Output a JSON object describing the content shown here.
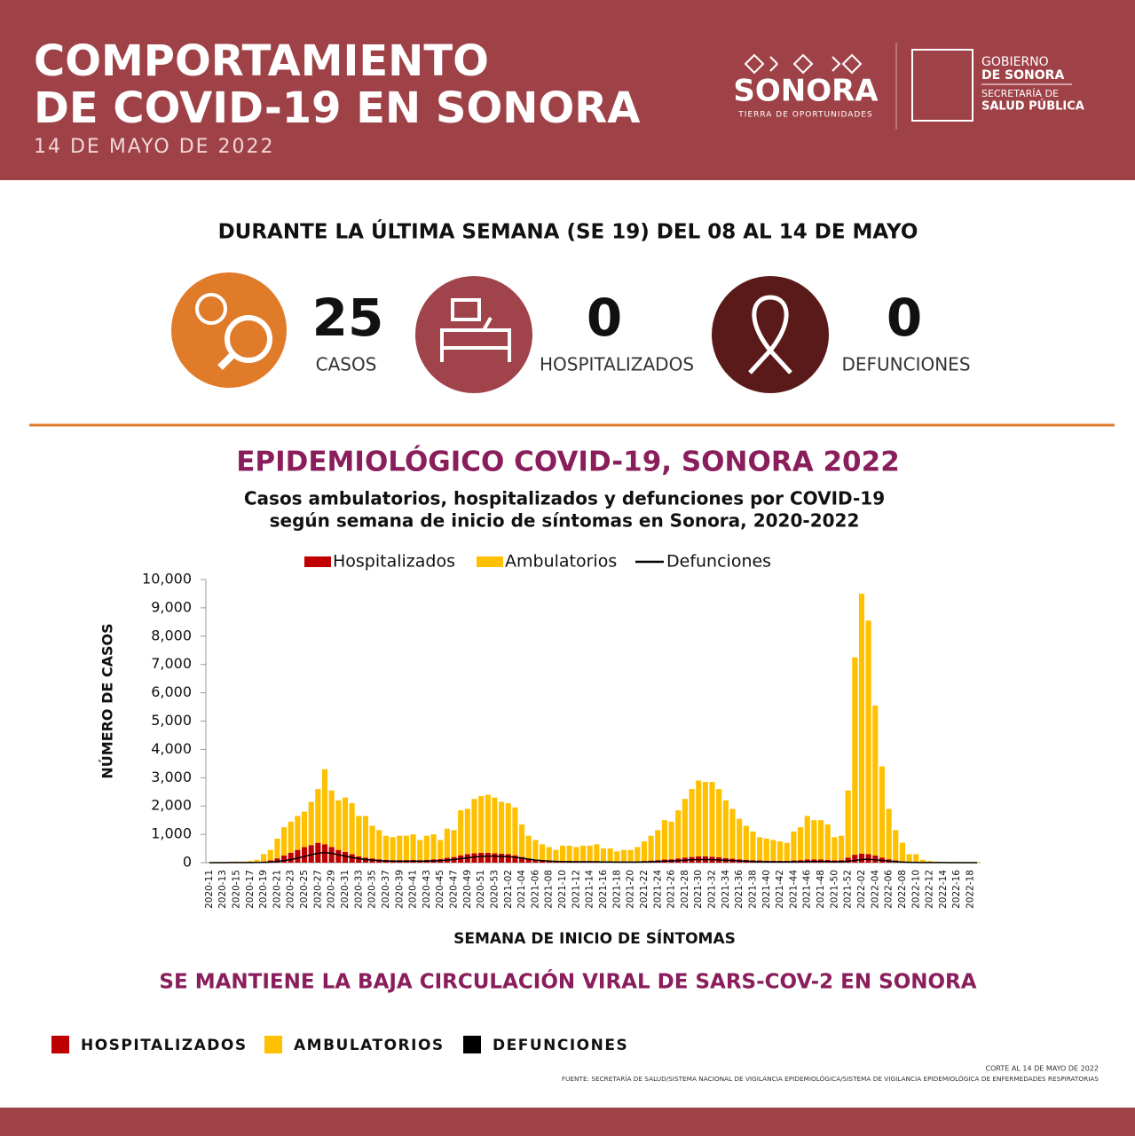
{
  "header": {
    "title_line1": "COMPORTAMIENTO",
    "title_line2": "DE COVID-19 EN SONORA",
    "date": "14 DE MAYO DE 2022",
    "logo_main": "SONORA",
    "logo_tagline": "TIERRA DE OPORTUNIDADES",
    "gov_line1": "GOBIERNO",
    "gov_line2": "DE SONORA",
    "sec_line1": "SECRETARÍA DE",
    "sec_line2": "SALUD PÚBLICA"
  },
  "summary": {
    "heading": "DURANTE LA ÚLTIMA SEMANA (SE 19) DEL 08 AL 14 DE MAYO",
    "stats": [
      {
        "value": 25,
        "label": "CASOS"
      },
      {
        "value": 0,
        "label": "HOSPITALIZADOS"
      },
      {
        "value": 0,
        "label": "DEFUNCIONES"
      }
    ]
  },
  "chart_data": {
    "type": "bar",
    "stacked": true,
    "title": "EPIDEMIOLÓGICO COVID-19, SONORA 2022",
    "subtitle": [
      "Casos ambulatorios, hospitalizados y defunciones por COVID-19",
      "según semana de inicio de síntomas en Sonora, 2020-2022"
    ],
    "y_label": "NÚMERO DE CASOS",
    "x_label": "SEMANA DE INICIO DE SÍNTOMAS",
    "ylim": [
      0,
      10000
    ],
    "yticks": [
      0,
      {
        "value": 1000,
        "label": "1,000"
      },
      {
        "value": 2000,
        "label": "2,000"
      },
      {
        "value": 3000,
        "label": "3,000"
      },
      {
        "value": 4000,
        "label": "4,000"
      },
      {
        "value": 5000,
        "label": "5,000"
      },
      {
        "value": 6000,
        "label": "6,000"
      },
      {
        "value": 7000,
        "label": "7,000"
      },
      {
        "value": 8000,
        "label": "8,000"
      },
      {
        "value": 9000,
        "label": "9,000"
      },
      {
        "value": 10000,
        "label": "10,000"
      }
    ],
    "categories": [
      "2020-11",
      null,
      "2020-13",
      null,
      "2020-15",
      null,
      "2020-17",
      null,
      "2020-19",
      null,
      "2020-21",
      null,
      "2020-23",
      null,
      "2020-25",
      null,
      "2020-27",
      null,
      "2020-29",
      null,
      "2020-31",
      null,
      "2020-33",
      null,
      "2020-35",
      null,
      "2020-37",
      null,
      "2020-39",
      null,
      "2020-41",
      null,
      "2020-43",
      null,
      "2020-45",
      null,
      "2020-47",
      null,
      "2020-49",
      null,
      "2020-51",
      null,
      "2020-53",
      null,
      "2021-02",
      null,
      "2021-04",
      null,
      "2021-06",
      null,
      "2021-08",
      null,
      "2021-10",
      null,
      "2021-12",
      null,
      "2021-14",
      null,
      "2021-16",
      null,
      "2021-18",
      null,
      "2021-20",
      null,
      "2021-22",
      null,
      "2021-24",
      null,
      "2021-26",
      null,
      "2021-28",
      null,
      "2021-30",
      null,
      "2021-32",
      null,
      "2021-34",
      null,
      "2021-36",
      null,
      "2021-38",
      null,
      "2021-40",
      null,
      "2021-42",
      null,
      "2021-44",
      null,
      "2021-46",
      null,
      "2021-48",
      null,
      "2021-50",
      null,
      "2021-52",
      null,
      "2022-02",
      null,
      "2022-04",
      null,
      "2022-06",
      null,
      "2022-08",
      null,
      "2022-10",
      null,
      "2022-12",
      null,
      "2022-14",
      null,
      "2022-16",
      null,
      "2022-18",
      null
    ],
    "series": [
      {
        "name": "Hospitalizados",
        "color": "#c00000",
        "values": [
          5,
          5,
          5,
          5,
          10,
          10,
          10,
          20,
          40,
          80,
          150,
          250,
          350,
          450,
          550,
          620,
          700,
          650,
          550,
          450,
          380,
          300,
          220,
          180,
          150,
          120,
          100,
          90,
          90,
          90,
          100,
          90,
          100,
          120,
          130,
          170,
          200,
          260,
          300,
          330,
          350,
          350,
          330,
          320,
          300,
          260,
          200,
          150,
          110,
          90,
          70,
          60,
          60,
          60,
          55,
          55,
          55,
          55,
          50,
          45,
          40,
          40,
          40,
          45,
          60,
          75,
          90,
          110,
          120,
          150,
          180,
          200,
          220,
          220,
          210,
          190,
          160,
          140,
          120,
          100,
          90,
          80,
          70,
          70,
          65,
          65,
          80,
          90,
          110,
          110,
          110,
          100,
          80,
          90,
          180,
          280,
          320,
          300,
          250,
          180,
          120,
          80,
          50,
          30,
          20,
          10,
          5,
          5,
          5,
          3,
          3,
          2,
          2,
          2
        ]
      },
      {
        "name": "Ambulatorios",
        "color": "#ffc000",
        "values": [
          15,
          15,
          25,
          25,
          30,
          30,
          50,
          80,
          260,
          370,
          700,
          1000,
          1100,
          1200,
          1250,
          1530,
          1900,
          2650,
          2000,
          1750,
          1920,
          1800,
          1430,
          1470,
          1150,
          1030,
          850,
          810,
          860,
          860,
          900,
          710,
          850,
          880,
          670,
          1030,
          950,
          1590,
          1600,
          1920,
          2000,
          2050,
          1970,
          1830,
          1800,
          1690,
          1150,
          800,
          690,
          560,
          480,
          390,
          540,
          540,
          495,
          545,
          545,
          595,
          450,
          455,
          360,
          410,
          410,
          505,
          690,
          875,
          1060,
          1390,
          1330,
          1700,
          2070,
          2400,
          2680,
          2630,
          2640,
          2410,
          2040,
          1760,
          1430,
          1200,
          1010,
          820,
          780,
          730,
          685,
          635,
          1020,
          1160,
          1540,
          1390,
          1390,
          1250,
          820,
          860,
          2370,
          6970,
          9180,
          8250,
          5300,
          3220,
          1780,
          1070,
          650,
          270,
          280,
          90,
          55,
          35,
          25,
          27,
          27,
          23,
          23,
          18
        ]
      },
      {
        "name": "Defunciones",
        "color": "#000000",
        "kind": "line",
        "values": [
          1,
          1,
          1,
          2,
          2,
          3,
          4,
          6,
          10,
          20,
          40,
          70,
          110,
          160,
          220,
          280,
          330,
          360,
          330,
          280,
          230,
          180,
          140,
          110,
          90,
          70,
          60,
          50,
          50,
          50,
          50,
          50,
          55,
          60,
          70,
          90,
          110,
          140,
          170,
          200,
          220,
          230,
          230,
          220,
          210,
          190,
          160,
          120,
          90,
          70,
          55,
          45,
          40,
          35,
          30,
          30,
          30,
          30,
          25,
          25,
          20,
          20,
          20,
          20,
          25,
          30,
          40,
          50,
          60,
          70,
          85,
          100,
          110,
          110,
          105,
          95,
          85,
          75,
          60,
          50,
          40,
          35,
          30,
          30,
          28,
          28,
          30,
          35,
          40,
          45,
          45,
          40,
          35,
          35,
          50,
          80,
          110,
          120,
          100,
          80,
          55,
          35,
          20,
          12,
          8,
          5,
          3,
          2,
          2,
          1,
          1,
          1,
          1,
          1
        ]
      }
    ],
    "legend": "top"
  },
  "message": "SE MANTIENE LA BAJA CIRCULACIÓN VIRAL DE SARS-COV-2 EN SONORA",
  "bottom_legend": [
    {
      "label": "HOSPITALIZADOS",
      "color": "#c00000"
    },
    {
      "label": "AMBULATORIOS",
      "color": "#ffc000"
    },
    {
      "label": "DEFUNCIONES",
      "color": "#000000"
    }
  ],
  "footer": {
    "cut": "CORTE AL 14 DE MAYO DE 2022",
    "source": "FUENTE: SECRETARÍA DE SALUD/SISTEMA NACIONAL DE VIGILANCIA EPIDEMIOLÓGICA/SISTEMA DE VIGILANCIA EPIDEMIOLÓGICA DE ENFERMEDADES RESPIRATORIAS"
  }
}
